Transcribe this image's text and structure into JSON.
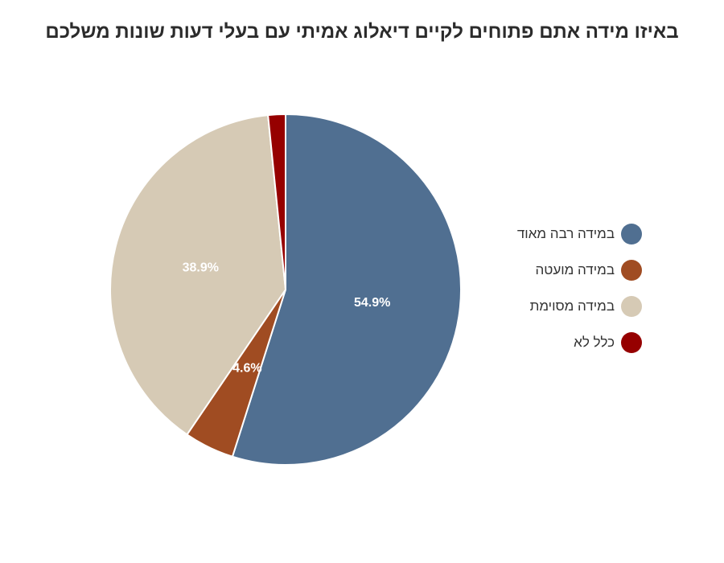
{
  "chart_data": {
    "type": "pie",
    "title": "באיזו מידה אתם פתוחים לקיים דיאלוג אמיתי עם בעלי דעות שונות משלכם",
    "slices": [
      {
        "name": "במידה רבה מאוד",
        "value": 54.9,
        "label": "54.9%",
        "color": "#506f91"
      },
      {
        "name": "במידה מועטה",
        "value": 4.6,
        "label": "4.6%",
        "color": "#a04c22"
      },
      {
        "name": "במידה מסוימת",
        "value": 38.9,
        "label": "38.9%",
        "color": "#d6cab5"
      },
      {
        "name": "כלל לא",
        "value": 1.6,
        "label": "",
        "color": "#960000"
      }
    ],
    "legend_position": "right"
  }
}
